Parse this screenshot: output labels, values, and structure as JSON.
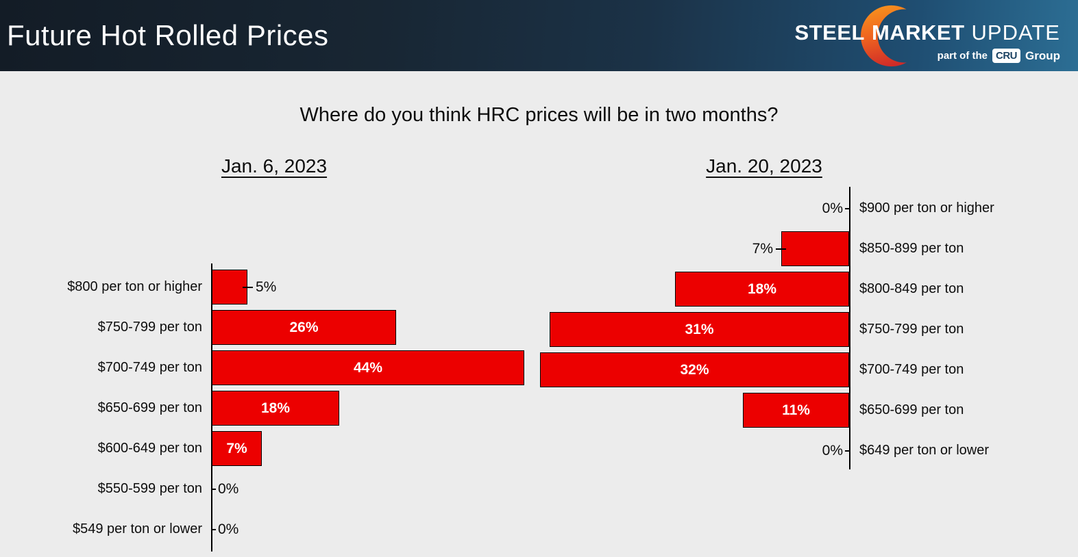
{
  "header": {
    "title": "Future Hot Rolled Prices",
    "logo": {
      "steel": "STEEL",
      "market": "MARKET",
      "update": "UPDATE",
      "tagline_prefix": "part of the",
      "cru": "CRU",
      "group": "Group"
    }
  },
  "question_title": "Where do you think HRC prices will be in two months?",
  "colors": {
    "bar_red": "#EC0000",
    "bar_border": "#000000",
    "chart_background": "#ECECEC",
    "header_dark": "#131C26",
    "header_light": "#2C6E94",
    "crescent_top": "#F7941E",
    "crescent_bottom": "#CF2B28",
    "cru_text": "#1C4363"
  },
  "chart_data": [
    {
      "type": "bar",
      "orientation": "horizontal",
      "direction": "right",
      "title": "Jan. 6, 2023",
      "bar_color": "#EC0000",
      "categories": [
        "$800 per ton or higher",
        "$750-799 per ton",
        "$700-749 per ton",
        "$650-699 per ton",
        "$600-649 per ton",
        "$550-599 per ton",
        "$549 per ton or lower"
      ],
      "values": [
        5,
        26,
        44,
        18,
        7,
        0,
        0
      ],
      "labels": [
        "5%",
        "26%",
        "44%",
        "18%",
        "7%",
        "0%",
        "0%"
      ],
      "label_placement": [
        "outside",
        "inside",
        "inside",
        "inside",
        "inside",
        "outside",
        "outside"
      ],
      "xlim": [
        0,
        44
      ],
      "grid": false,
      "legend": false
    },
    {
      "type": "bar",
      "orientation": "horizontal",
      "direction": "left",
      "title": "Jan. 20, 2023",
      "bar_color": "#EC0000",
      "categories": [
        "$900 per ton or higher",
        "$850-899 per ton",
        "$800-849 per ton",
        "$750-799 per ton",
        "$700-749 per ton",
        "$650-699 per ton",
        "$649 per ton or lower"
      ],
      "values": [
        0,
        7,
        18,
        31,
        32,
        11,
        0
      ],
      "labels": [
        "0%",
        "7%",
        "18%",
        "31%",
        "32%",
        "11%",
        "0%"
      ],
      "label_placement": [
        "outside",
        "outside",
        "inside",
        "inside",
        "inside",
        "inside",
        "outside"
      ],
      "xlim": [
        0,
        32
      ],
      "grid": false,
      "legend": false
    }
  ]
}
